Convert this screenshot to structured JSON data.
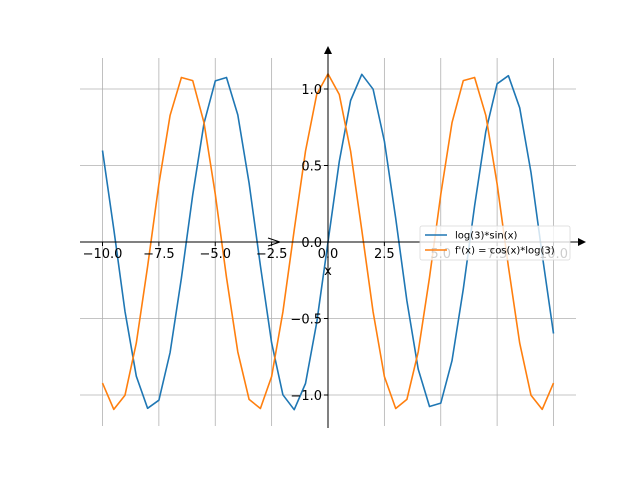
{
  "chart_data": {
    "type": "line",
    "xlabel": "x",
    "xlim": [
      -10,
      10
    ],
    "ylim": [
      -1.2,
      1.2
    ],
    "grid": true,
    "legend_position": "center-right",
    "x_ticks": [
      {
        "value": -10,
        "label": "−10.0"
      },
      {
        "value": -7.5,
        "label": "−7.5"
      },
      {
        "value": -5,
        "label": "−5.0"
      },
      {
        "value": -2.5,
        "label": "−2.5"
      },
      {
        "value": 0,
        "label": "0.0"
      },
      {
        "value": 2.5,
        "label": "2.5"
      },
      {
        "value": 5,
        "label": "5.0"
      },
      {
        "value": 7.5,
        "label": "7.5"
      },
      {
        "value": 10,
        "label": "10.0"
      }
    ],
    "y_ticks": [
      {
        "value": -1,
        "label": "−1.0"
      },
      {
        "value": -0.5,
        "label": "−0.5"
      },
      {
        "value": 0,
        "label": "0.0"
      },
      {
        "value": 0.5,
        "label": "0.5"
      },
      {
        "value": 1,
        "label": "1.0"
      }
    ],
    "x": [
      -10,
      -9.5,
      -9,
      -8.5,
      -8,
      -7.5,
      -7,
      -6.5,
      -6,
      -5.5,
      -5,
      -4.5,
      -4,
      -3.5,
      -3,
      -2.5,
      -2,
      -1.5,
      -1,
      -0.5,
      0,
      0.5,
      1,
      1.5,
      2,
      2.5,
      3,
      3.5,
      4,
      4.5,
      5,
      5.5,
      6,
      6.5,
      7,
      7.5,
      8,
      8.5,
      9,
      9.5,
      10
    ],
    "series": [
      {
        "name": "log(3)*sin(x)",
        "color": "#1f77b4",
        "values": [
          0.598,
          0.083,
          -0.454,
          -0.877,
          -1.087,
          -1.034,
          -0.722,
          -0.236,
          0.307,
          0.776,
          1.053,
          1.075,
          0.831,
          0.385,
          -0.155,
          -0.658,
          -0.999,
          -1.096,
          -0.925,
          -0.527,
          0.0,
          0.527,
          0.925,
          1.096,
          0.999,
          0.658,
          0.155,
          -0.385,
          -0.831,
          -1.075,
          -1.053,
          -0.776,
          -0.307,
          0.236,
          0.722,
          1.034,
          1.087,
          0.877,
          0.454,
          -0.083,
          -0.598
        ]
      },
      {
        "name": "f'(x) = cos(x)*log(3)",
        "color": "#ff7f0e",
        "values": [
          -0.922,
          -1.094,
          -1.001,
          -0.661,
          -0.16,
          0.38,
          0.828,
          1.075,
          1.055,
          0.78,
          0.312,
          -0.232,
          -0.718,
          -1.029,
          -1.088,
          -0.88,
          -0.457,
          0.078,
          0.594,
          0.964,
          1.099,
          0.964,
          0.594,
          0.078,
          -0.457,
          -0.88,
          -1.088,
          -1.029,
          -0.718,
          -0.232,
          0.312,
          0.78,
          1.055,
          1.075,
          0.828,
          0.38,
          -0.16,
          -0.661,
          -1.001,
          -1.094,
          -0.922
        ]
      }
    ]
  }
}
